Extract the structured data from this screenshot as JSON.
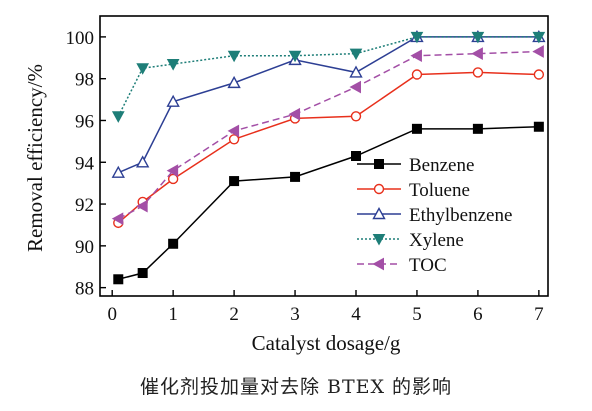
{
  "chart_data": {
    "type": "line",
    "xlabel": "Catalyst dosage/g",
    "ylabel": "Removal efficiency/%",
    "xlim": [
      -0.2,
      7.15
    ],
    "ylim": [
      87.6,
      101
    ],
    "xticks": [
      0,
      1,
      2,
      3,
      4,
      5,
      6,
      7
    ],
    "yticks": [
      88,
      90,
      92,
      94,
      96,
      98,
      100
    ],
    "grid": false,
    "legend_position": "bottom-right",
    "x": [
      0.1,
      0.5,
      1,
      2,
      3,
      4,
      5,
      6,
      7
    ],
    "series": [
      {
        "name": "Benzene",
        "marker": "square-filled",
        "dash": "solid",
        "color": "#000000",
        "values": [
          88.4,
          88.7,
          90.1,
          93.1,
          93.3,
          94.3,
          95.6,
          95.6,
          95.7
        ]
      },
      {
        "name": "Toluene",
        "marker": "circle-open",
        "dash": "solid",
        "color": "#e8301c",
        "values": [
          91.1,
          92.1,
          93.2,
          95.1,
          96.1,
          96.2,
          98.2,
          98.3,
          98.2
        ]
      },
      {
        "name": "Ethylbenzene",
        "marker": "triangle-up-open",
        "dash": "solid",
        "color": "#2d3f94",
        "values": [
          93.5,
          94.0,
          96.9,
          97.8,
          98.9,
          98.3,
          100.0,
          100.0,
          100.0
        ]
      },
      {
        "name": "Xylene",
        "marker": "triangle-down-filled",
        "dash": "dotted",
        "color": "#1e7e78",
        "values": [
          96.2,
          98.5,
          98.7,
          99.1,
          99.1,
          99.2,
          100.0,
          100.0,
          100.0
        ]
      },
      {
        "name": "TOC",
        "marker": "triangle-left-filled",
        "dash": "dashed",
        "color": "#a34fa6",
        "values": [
          91.3,
          91.9,
          93.6,
          95.5,
          96.3,
          97.6,
          99.1,
          99.2,
          99.3
        ]
      }
    ]
  },
  "caption": "催化剂投加量对去除 BTEX 的影响"
}
